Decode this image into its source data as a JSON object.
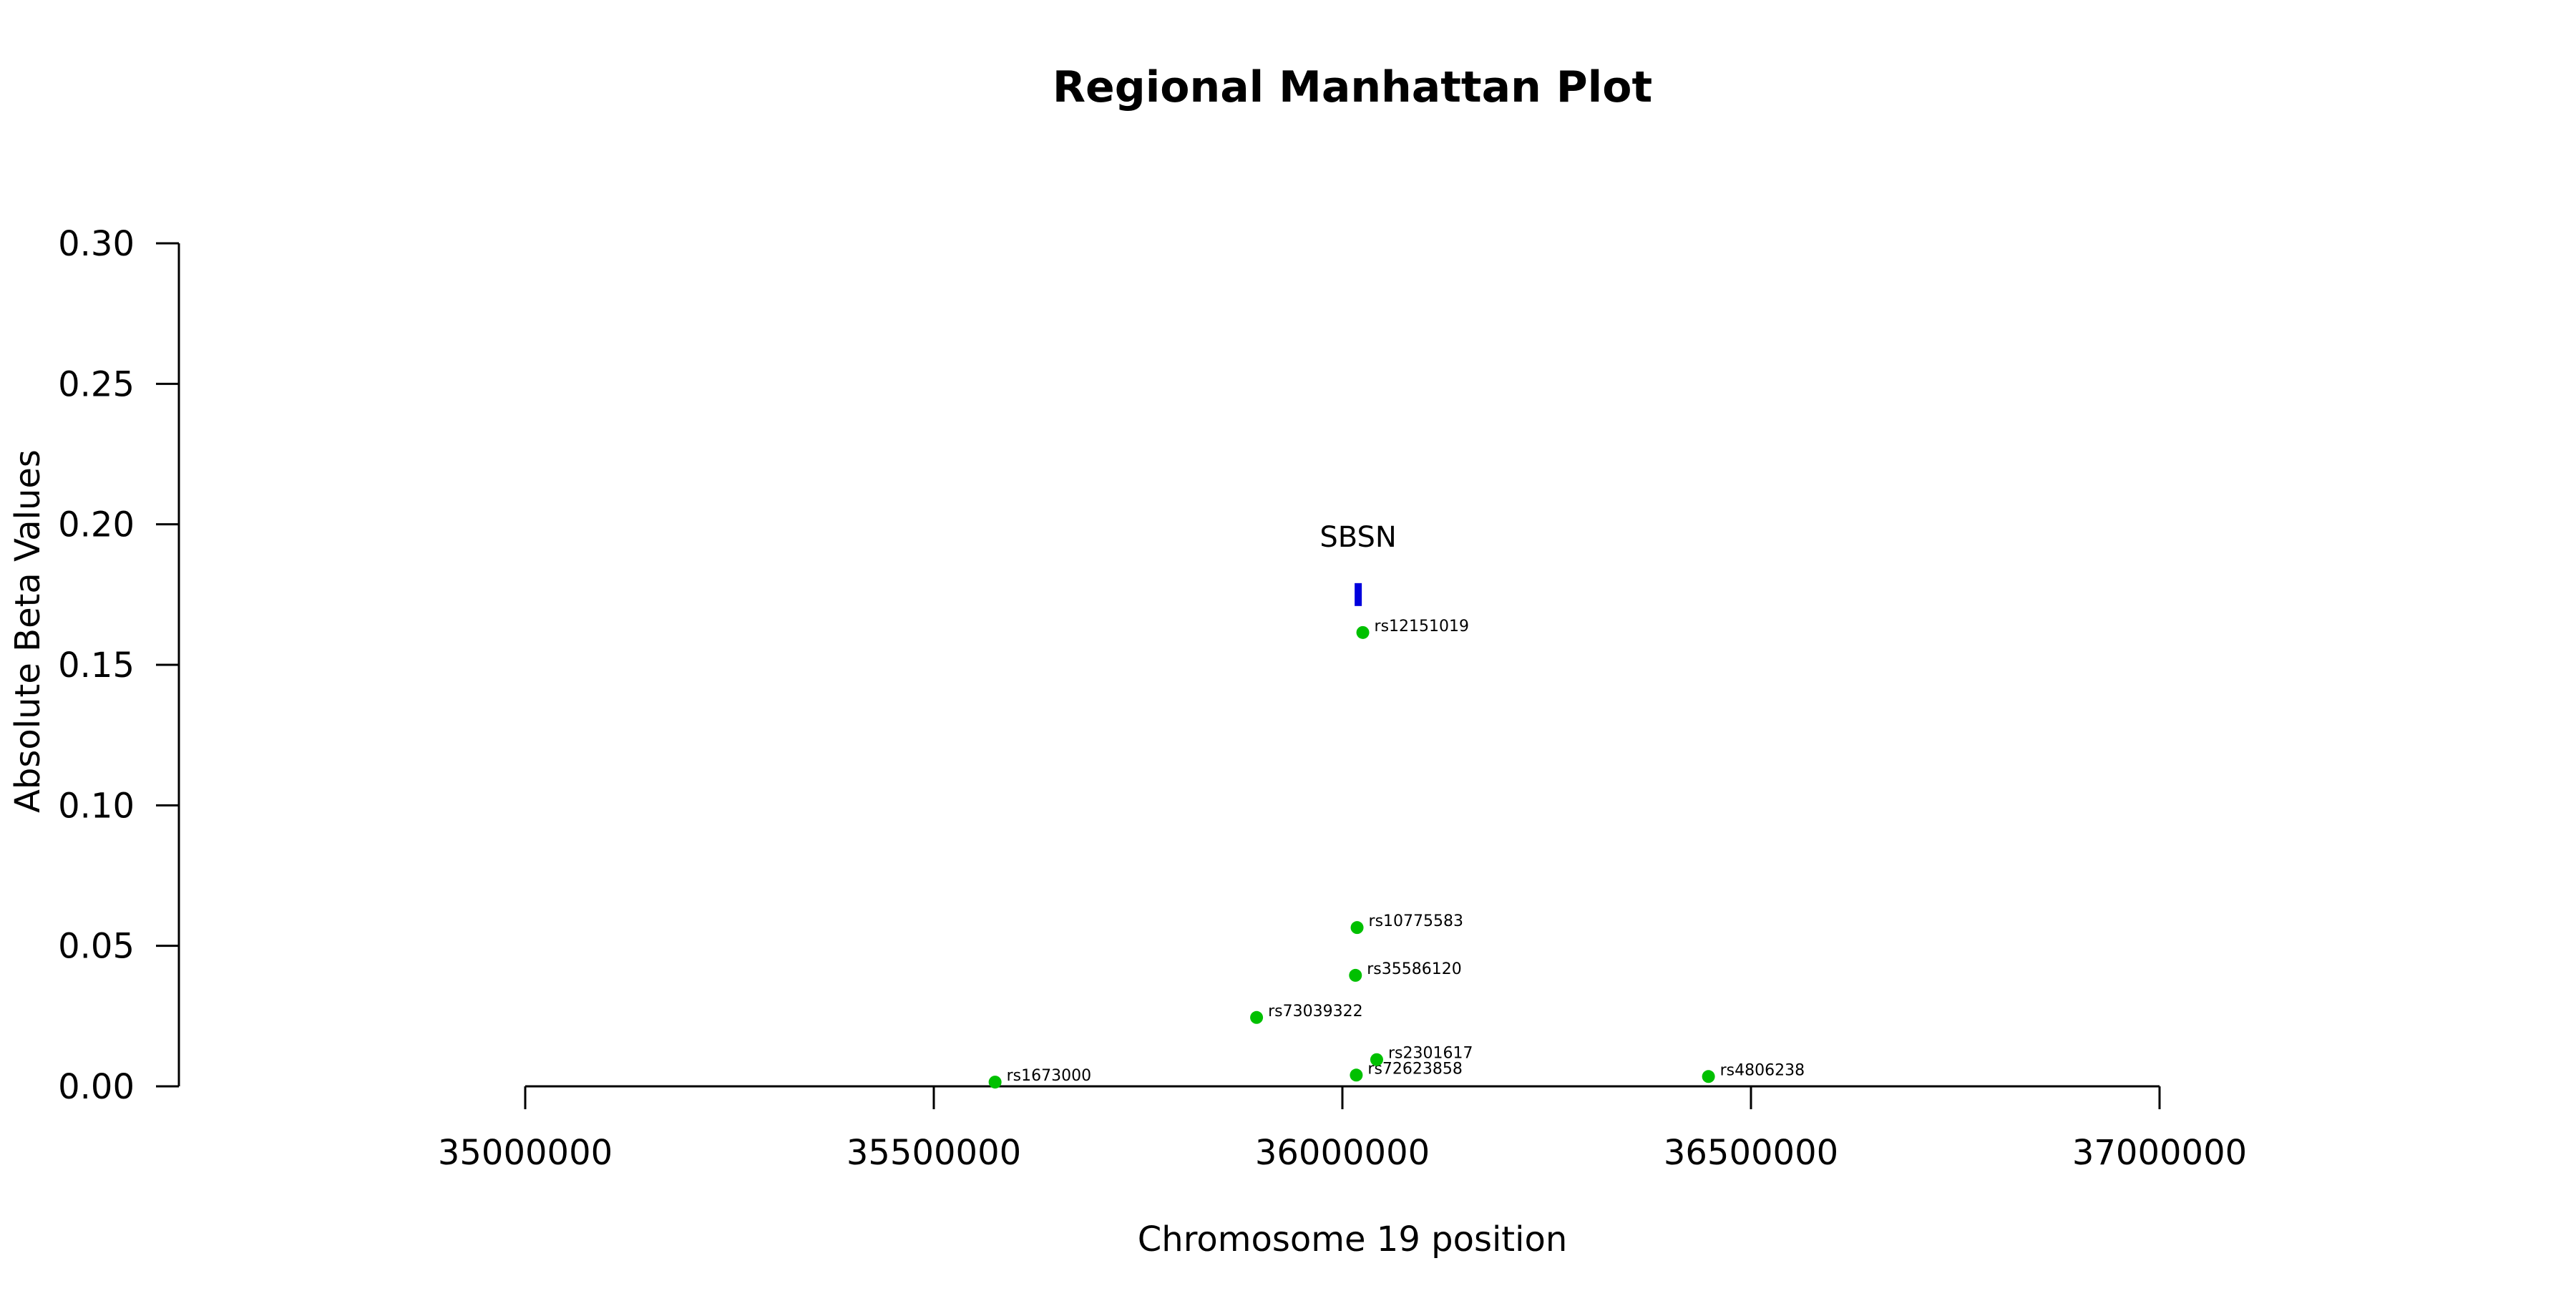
{
  "chart_data": {
    "type": "scatter",
    "title": "Regional Manhattan Plot",
    "xlabel": "Chromosome 19 position",
    "ylabel": "Absolute Beta Values",
    "xlim": [
      35000000,
      37000000
    ],
    "ylim": [
      0,
      0.3
    ],
    "x_ticks": [
      35000000,
      35500000,
      36000000,
      36500000,
      37000000
    ],
    "x_tick_labels": [
      "35000000",
      "35500000",
      "36000000",
      "36500000",
      "37000000"
    ],
    "y_ticks": [
      0,
      0.05,
      0.1,
      0.15,
      0.2,
      0.25,
      0.3
    ],
    "y_tick_labels": [
      "0.00",
      "0.05",
      "0.10",
      "0.15",
      "0.20",
      "0.25",
      "0.30"
    ],
    "grid": false,
    "point_color": "#00c000",
    "points": [
      {
        "x": 35575000,
        "y": 0.0015,
        "label": "rs1673000"
      },
      {
        "x": 35895000,
        "y": 0.0245,
        "label": "rs73039322"
      },
      {
        "x": 36016000,
        "y": 0.0395,
        "label": "rs35586120"
      },
      {
        "x": 36018000,
        "y": 0.0565,
        "label": "rs10775583"
      },
      {
        "x": 36017000,
        "y": 0.004,
        "label": "rs72623858"
      },
      {
        "x": 36025000,
        "y": 0.1615,
        "label": "rs12151019"
      },
      {
        "x": 36042000,
        "y": 0.0095,
        "label": "rs2301617"
      },
      {
        "x": 36448000,
        "y": 0.0035,
        "label": "rs4806238"
      }
    ],
    "genes": [
      {
        "name": "SBSN",
        "start": 36015000,
        "end": 36021000,
        "y": 0.175,
        "color": "#0000dd"
      }
    ]
  }
}
